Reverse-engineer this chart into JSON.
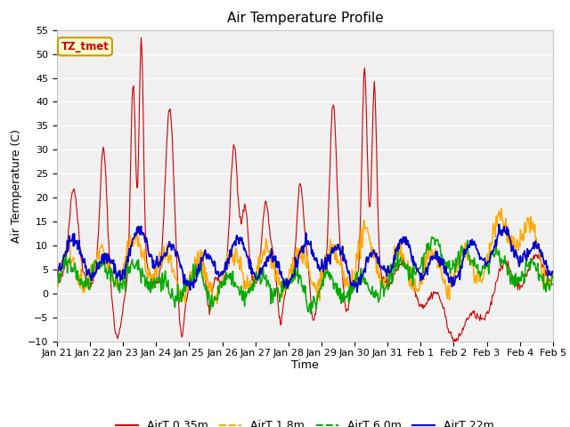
{
  "title": "Air Temperature Profile",
  "xlabel": "Time",
  "ylabel": "Air Termperature (C)",
  "ylim": [
    -10,
    55
  ],
  "yticks": [
    -10,
    -5,
    0,
    5,
    10,
    15,
    20,
    25,
    30,
    35,
    40,
    45,
    50,
    55
  ],
  "x_tick_labels": [
    "Jan 21",
    "Jan 22",
    "Jan 23",
    "Jan 24",
    "Jan 25",
    "Jan 26",
    "Jan 27",
    "Jan 28",
    "Jan 29",
    "Jan 30",
    "Jan 31",
    "Feb 1",
    "Feb 2",
    "Feb 3",
    "Feb 4",
    "Feb 5"
  ],
  "colors": {
    "red": "#cc0000",
    "orange": "#ffaa00",
    "green": "#00aa00",
    "blue": "#0000cc"
  },
  "annotation_text": "TZ_tmet",
  "annotation_bg": "#ffffcc",
  "annotation_border": "#cc9900",
  "annotation_text_color": "#cc0000",
  "legend_labels": [
    "AirT 0.35m",
    "AirT 1.8m",
    "AirT 6.0m",
    "AirT 22m"
  ],
  "fig_bg": "#ffffff",
  "plot_bg": "#f0f0f0",
  "grid_color": "#ffffff",
  "title_fontsize": 11,
  "axis_label_fontsize": 9,
  "tick_fontsize": 8
}
